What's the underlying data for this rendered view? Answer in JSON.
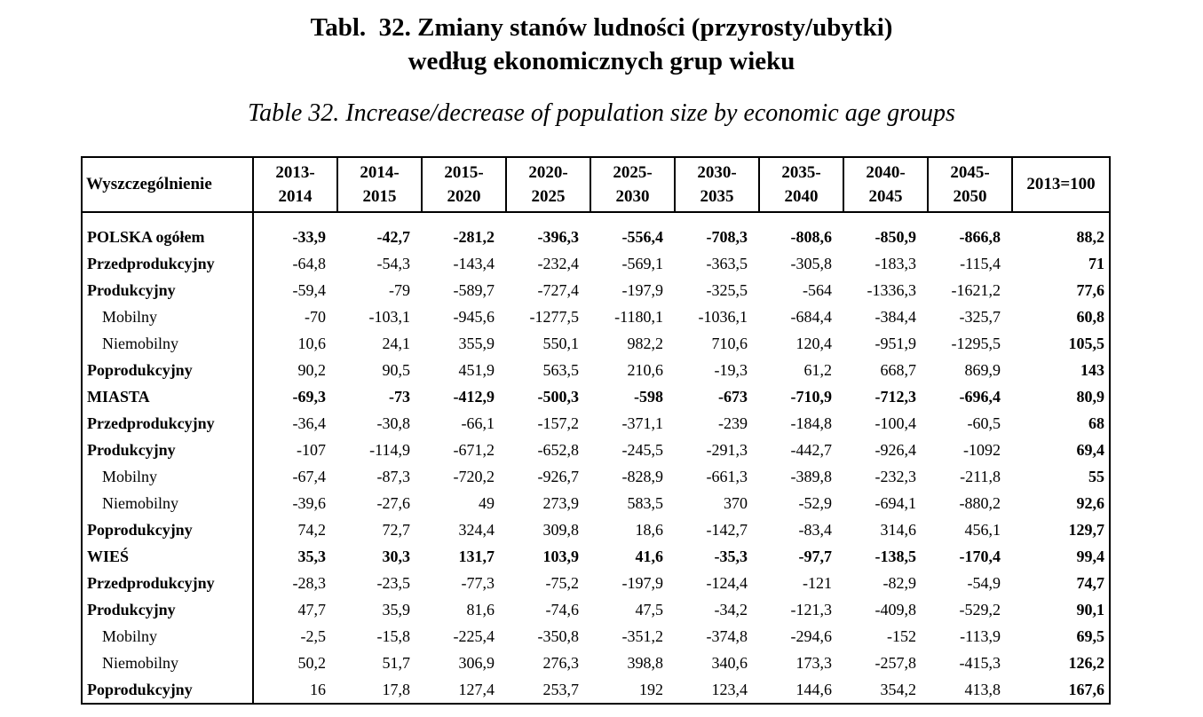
{
  "page": {
    "background_color": "#ffffff",
    "text_color": "#000000"
  },
  "title": {
    "line1": "Tabl.  32. Zmiany stanów ludności (przyrosty/ubytki)",
    "line2": "według ekonomicznych grup wieku",
    "subtitle_en": "Table 32. Increase/decrease of population size by economic age groups"
  },
  "table": {
    "stub_header": "Wyszczególnienie",
    "period_columns": [
      {
        "line1": "2013-",
        "line2": "2014"
      },
      {
        "line1": "2014-",
        "line2": "2015"
      },
      {
        "line1": "2015-",
        "line2": "2020"
      },
      {
        "line1": "2020-",
        "line2": "2025"
      },
      {
        "line1": "2025-",
        "line2": "2030"
      },
      {
        "line1": "2030-",
        "line2": "2035"
      },
      {
        "line1": "2035-",
        "line2": "2040"
      },
      {
        "line1": "2040-",
        "line2": "2045"
      },
      {
        "line1": "2045-",
        "line2": "2050"
      }
    ],
    "index_header": "2013=100",
    "rows": [
      {
        "label": "POLSKA ogółem",
        "level": "total",
        "values": [
          "-33,9",
          "-42,7",
          "-281,2",
          "-396,3",
          "-556,4",
          "-708,3",
          "-808,6",
          "-850,9",
          "-866,8"
        ],
        "index": "88,2"
      },
      {
        "label": "Przedprodukcyjny",
        "level": "group",
        "values": [
          "-64,8",
          "-54,3",
          "-143,4",
          "-232,4",
          "-569,1",
          "-363,5",
          "-305,8",
          "-183,3",
          "-115,4"
        ],
        "index": "71"
      },
      {
        "label": "Produkcyjny",
        "level": "group",
        "values": [
          "-59,4",
          "-79",
          "-589,7",
          "-727,4",
          "-197,9",
          "-325,5",
          "-564",
          "-1336,3",
          "-1621,2"
        ],
        "index": "77,6"
      },
      {
        "label": "Mobilny",
        "level": "sub",
        "values": [
          "-70",
          "-103,1",
          "-945,6",
          "-1277,5",
          "-1180,1",
          "-1036,1",
          "-684,4",
          "-384,4",
          "-325,7"
        ],
        "index": "60,8"
      },
      {
        "label": "Niemobilny",
        "level": "sub",
        "values": [
          "10,6",
          "24,1",
          "355,9",
          "550,1",
          "982,2",
          "710,6",
          "120,4",
          "-951,9",
          "-1295,5"
        ],
        "index": "105,5"
      },
      {
        "label": "Poprodukcyjny",
        "level": "group",
        "values": [
          "90,2",
          "90,5",
          "451,9",
          "563,5",
          "210,6",
          "-19,3",
          "61,2",
          "668,7",
          "869,9"
        ],
        "index": "143"
      },
      {
        "label": "MIASTA",
        "level": "total",
        "values": [
          "-69,3",
          "-73",
          "-412,9",
          "-500,3",
          "-598",
          "-673",
          "-710,9",
          "-712,3",
          "-696,4"
        ],
        "index": "80,9"
      },
      {
        "label": "Przedprodukcyjny",
        "level": "group",
        "values": [
          "-36,4",
          "-30,8",
          "-66,1",
          "-157,2",
          "-371,1",
          "-239",
          "-184,8",
          "-100,4",
          "-60,5"
        ],
        "index": "68"
      },
      {
        "label": "Produkcyjny",
        "level": "group",
        "values": [
          "-107",
          "-114,9",
          "-671,2",
          "-652,8",
          "-245,5",
          "-291,3",
          "-442,7",
          "-926,4",
          "-1092"
        ],
        "index": "69,4"
      },
      {
        "label": "Mobilny",
        "level": "sub",
        "values": [
          "-67,4",
          "-87,3",
          "-720,2",
          "-926,7",
          "-828,9",
          "-661,3",
          "-389,8",
          "-232,3",
          "-211,8"
        ],
        "index": "55"
      },
      {
        "label": "Niemobilny",
        "level": "sub",
        "values": [
          "-39,6",
          "-27,6",
          "49",
          "273,9",
          "583,5",
          "370",
          "-52,9",
          "-694,1",
          "-880,2"
        ],
        "index": "92,6"
      },
      {
        "label": "Poprodukcyjny",
        "level": "group",
        "values": [
          "74,2",
          "72,7",
          "324,4",
          "309,8",
          "18,6",
          "-142,7",
          "-83,4",
          "314,6",
          "456,1"
        ],
        "index": "129,7"
      },
      {
        "label": "WIEŚ",
        "level": "total",
        "values": [
          "35,3",
          "30,3",
          "131,7",
          "103,9",
          "41,6",
          "-35,3",
          "-97,7",
          "-138,5",
          "-170,4"
        ],
        "index": "99,4"
      },
      {
        "label": "Przedprodukcyjny",
        "level": "group",
        "values": [
          "-28,3",
          "-23,5",
          "-77,3",
          "-75,2",
          "-197,9",
          "-124,4",
          "-121",
          "-82,9",
          "-54,9"
        ],
        "index": "74,7"
      },
      {
        "label": "Produkcyjny",
        "level": "group",
        "values": [
          "47,7",
          "35,9",
          "81,6",
          "-74,6",
          "47,5",
          "-34,2",
          "-121,3",
          "-409,8",
          "-529,2"
        ],
        "index": "90,1"
      },
      {
        "label": "Mobilny",
        "level": "sub",
        "values": [
          "-2,5",
          "-15,8",
          "-225,4",
          "-350,8",
          "-351,2",
          "-374,8",
          "-294,6",
          "-152",
          "-113,9"
        ],
        "index": "69,5"
      },
      {
        "label": "Niemobilny",
        "level": "sub",
        "values": [
          "50,2",
          "51,7",
          "306,9",
          "276,3",
          "398,8",
          "340,6",
          "173,3",
          "-257,8",
          "-415,3"
        ],
        "index": "126,2"
      },
      {
        "label": "Poprodukcyjny",
        "level": "group",
        "values": [
          "16",
          "17,8",
          "127,4",
          "253,7",
          "192",
          "123,4",
          "144,6",
          "354,2",
          "413,8"
        ],
        "index": "167,6"
      }
    ]
  }
}
